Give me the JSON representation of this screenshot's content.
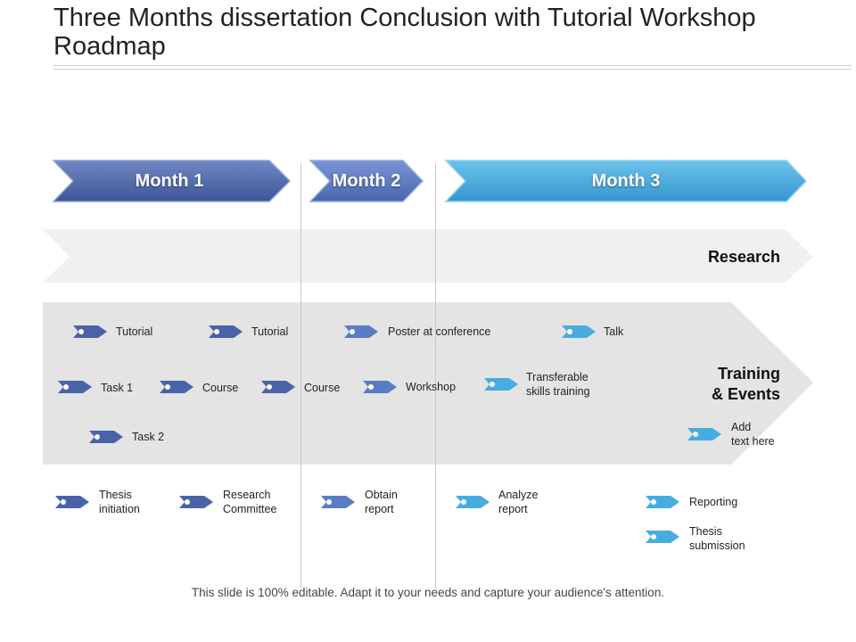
{
  "title": "Three Months dissertation Conclusion with Tutorial Workshop Roadmap",
  "months": [
    {
      "label": "Month 1",
      "color": "#4a63a8"
    },
    {
      "label": "Month 2",
      "color": "#5577be"
    },
    {
      "label": "Month 3",
      "color": "#43a9db"
    }
  ],
  "lanes": {
    "research": "Research",
    "training": "Training\n& Events"
  },
  "colors": {
    "dark_blue": "#4a63a8",
    "mid_blue": "#5a7cc4",
    "light_blue": "#48acdf",
    "research_band": "#f0f0f0",
    "training_band": "#e4e4e4"
  },
  "items": {
    "tutorial_1": "Tutorial",
    "tutorial_2": "Tutorial",
    "poster": "Poster at conference",
    "talk": "Talk",
    "task_1": "Task 1",
    "course_1": "Course",
    "course_2": "Course",
    "workshop": "Workshop",
    "transferable": "Transferable\nskills training",
    "task_2": "Task 2",
    "add_text": "Add\ntext here",
    "thesis_initiation": "Thesis\ninitiation",
    "research_committee": "Research\nCommittee",
    "obtain_report": "Obtain\nreport",
    "analyze_report": "Analyze\nreport",
    "reporting": "Reporting",
    "thesis_submission": "Thesis\nsubmission"
  },
  "footer": "This slide is 100% editable. Adapt it to your needs and capture your audience's attention."
}
